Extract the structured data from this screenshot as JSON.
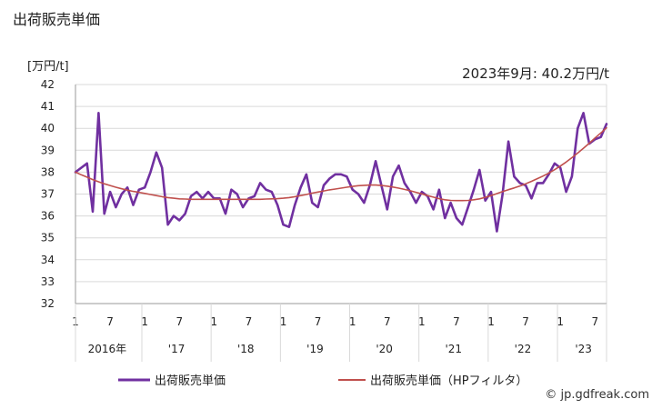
{
  "title": "出荷販売単価",
  "unit_label": "[万円/t]",
  "annotation": "2023年9月: 40.2万円/t",
  "source": "© jp.gdfreak.com",
  "colors": {
    "main": "#7030a0",
    "hp": "#c0504d",
    "grid": "#d9d9d9",
    "axis": "#999999"
  },
  "chart_data": {
    "type": "line",
    "ylim": [
      32,
      42
    ],
    "y_ticks": [
      32,
      33,
      34,
      35,
      36,
      37,
      38,
      39,
      40,
      41,
      42
    ],
    "x_month_labels": [
      "1",
      "7"
    ],
    "year_labels": [
      "2016年",
      "'17",
      "'18",
      "'19",
      "'20",
      "'21",
      "'22",
      "'23"
    ],
    "start": "2016-01",
    "end": "2023-09",
    "series": [
      {
        "name": "出荷販売単価",
        "values": [
          38.0,
          38.2,
          38.4,
          36.2,
          40.7,
          36.1,
          37.1,
          36.4,
          37.0,
          37.3,
          36.5,
          37.2,
          37.3,
          38.0,
          38.9,
          38.2,
          35.6,
          36.0,
          35.8,
          36.1,
          36.9,
          37.1,
          36.8,
          37.1,
          36.8,
          36.8,
          36.1,
          37.2,
          37.0,
          36.4,
          36.8,
          36.9,
          37.5,
          37.2,
          37.1,
          36.5,
          35.6,
          35.5,
          36.5,
          37.3,
          37.9,
          36.6,
          36.4,
          37.4,
          37.7,
          37.9,
          37.9,
          37.8,
          37.2,
          37.0,
          36.6,
          37.4,
          38.5,
          37.4,
          36.3,
          37.8,
          38.3,
          37.5,
          37.1,
          36.6,
          37.1,
          36.9,
          36.3,
          37.2,
          35.9,
          36.6,
          35.9,
          35.6,
          36.4,
          37.2,
          38.1,
          36.7,
          37.1,
          35.3,
          37.0,
          39.4,
          37.8,
          37.5,
          37.4,
          36.8,
          37.5,
          37.5,
          37.9,
          38.4,
          38.2,
          37.1,
          37.8,
          40.0,
          40.7,
          39.3,
          39.5,
          39.6,
          40.2
        ]
      },
      {
        "name": "出荷販売単価（HPフィルタ）",
        "values": [
          38.0,
          37.88,
          37.77,
          37.66,
          37.56,
          37.47,
          37.39,
          37.31,
          37.24,
          37.18,
          37.12,
          37.08,
          37.03,
          36.98,
          36.93,
          36.88,
          36.84,
          36.81,
          36.78,
          36.77,
          36.76,
          36.76,
          36.76,
          36.76,
          36.76,
          36.76,
          36.76,
          36.76,
          36.76,
          36.76,
          36.76,
          36.76,
          36.76,
          36.77,
          36.78,
          36.79,
          36.81,
          36.84,
          36.88,
          36.93,
          36.98,
          37.04,
          37.09,
          37.14,
          37.19,
          37.23,
          37.27,
          37.31,
          37.35,
          37.38,
          37.4,
          37.41,
          37.41,
          37.39,
          37.36,
          37.32,
          37.27,
          37.21,
          37.15,
          37.08,
          37.01,
          36.93,
          36.86,
          36.79,
          36.74,
          36.71,
          36.7,
          36.7,
          36.71,
          36.74,
          36.78,
          36.85,
          36.93,
          37.02,
          37.11,
          37.2,
          37.28,
          37.37,
          37.47,
          37.58,
          37.7,
          37.82,
          37.96,
          38.11,
          38.28,
          38.46,
          38.66,
          38.87,
          39.09,
          39.32,
          39.56,
          39.79,
          40.02
        ]
      }
    ]
  }
}
